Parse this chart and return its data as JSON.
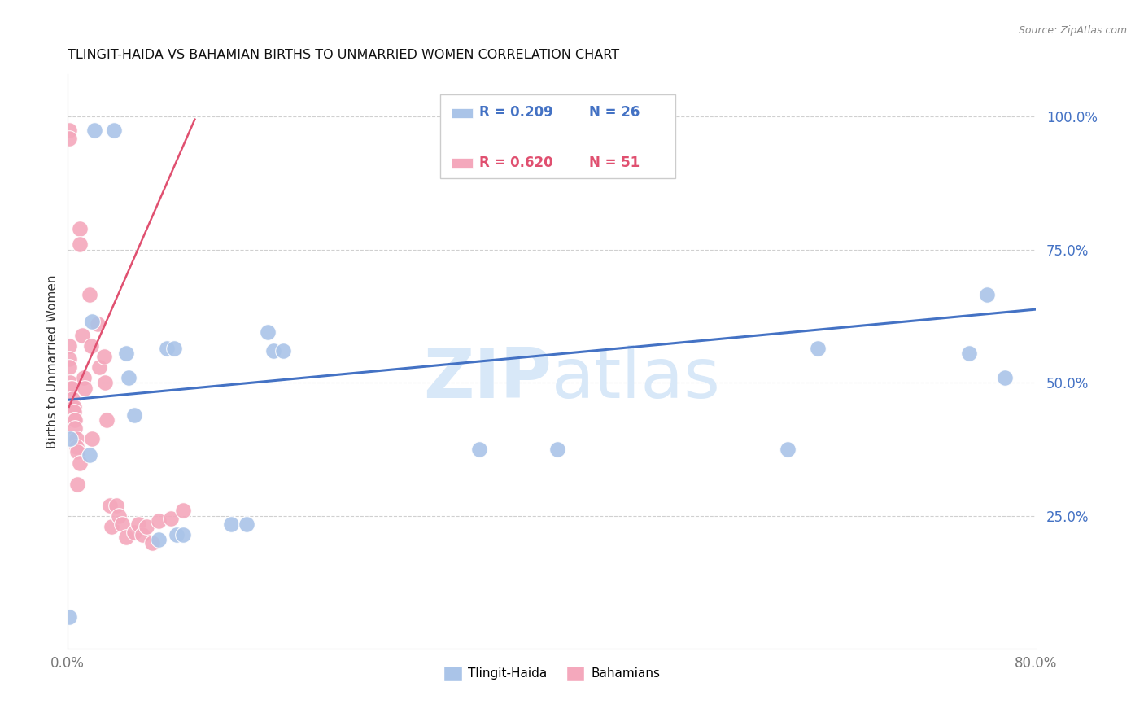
{
  "title": "TLINGIT-HAIDA VS BAHAMIAN BIRTHS TO UNMARRIED WOMEN CORRELATION CHART",
  "source": "Source: ZipAtlas.com",
  "ylabel": "Births to Unmarried Women",
  "x_min": 0.0,
  "x_max": 0.8,
  "y_min": 0.0,
  "y_max": 1.08,
  "legend_label1": "Tlingit-Haida",
  "legend_label2": "Bahamians",
  "legend_r1": "R = 0.209",
  "legend_n1": "N = 26",
  "legend_r2": "R = 0.620",
  "legend_n2": "N = 51",
  "blue_color": "#aac4e8",
  "pink_color": "#f4a8bc",
  "blue_line_color": "#4472c4",
  "pink_line_color": "#e05070",
  "background_color": "#ffffff",
  "watermark_color": "#d8e8f8",
  "tlingit_x": [
    0.001,
    0.002,
    0.018,
    0.02,
    0.022,
    0.038,
    0.048,
    0.05,
    0.055,
    0.075,
    0.082,
    0.088,
    0.09,
    0.095,
    0.135,
    0.148,
    0.165,
    0.17,
    0.178,
    0.34,
    0.405,
    0.595,
    0.62,
    0.745,
    0.76,
    0.775
  ],
  "tlingit_y": [
    0.06,
    0.395,
    0.365,
    0.615,
    0.975,
    0.975,
    0.555,
    0.51,
    0.44,
    0.205,
    0.565,
    0.565,
    0.215,
    0.215,
    0.235,
    0.235,
    0.595,
    0.56,
    0.56,
    0.375,
    0.375,
    0.375,
    0.565,
    0.555,
    0.665,
    0.51
  ],
  "bahamian_x": [
    0.001,
    0.001,
    0.001,
    0.001,
    0.001,
    0.002,
    0.002,
    0.002,
    0.003,
    0.003,
    0.003,
    0.003,
    0.004,
    0.004,
    0.005,
    0.005,
    0.005,
    0.006,
    0.006,
    0.007,
    0.007,
    0.008,
    0.008,
    0.01,
    0.01,
    0.01,
    0.012,
    0.013,
    0.014,
    0.018,
    0.019,
    0.02,
    0.025,
    0.026,
    0.03,
    0.031,
    0.032,
    0.035,
    0.036,
    0.04,
    0.042,
    0.045,
    0.048,
    0.055,
    0.058,
    0.062,
    0.065,
    0.07,
    0.075,
    0.085,
    0.095
  ],
  "bahamian_y": [
    0.975,
    0.96,
    0.57,
    0.545,
    0.53,
    0.5,
    0.49,
    0.455,
    0.49,
    0.46,
    0.44,
    0.43,
    0.47,
    0.455,
    0.455,
    0.445,
    0.43,
    0.43,
    0.415,
    0.395,
    0.38,
    0.37,
    0.31,
    0.79,
    0.76,
    0.35,
    0.59,
    0.51,
    0.49,
    0.665,
    0.57,
    0.395,
    0.61,
    0.53,
    0.55,
    0.5,
    0.43,
    0.27,
    0.23,
    0.27,
    0.25,
    0.235,
    0.21,
    0.22,
    0.235,
    0.215,
    0.23,
    0.2,
    0.24,
    0.245,
    0.26
  ],
  "blue_trend_x": [
    0.0,
    0.8
  ],
  "blue_trend_y": [
    0.468,
    0.638
  ],
  "pink_trend_x": [
    0.001,
    0.105
  ],
  "pink_trend_y": [
    0.455,
    0.995
  ]
}
